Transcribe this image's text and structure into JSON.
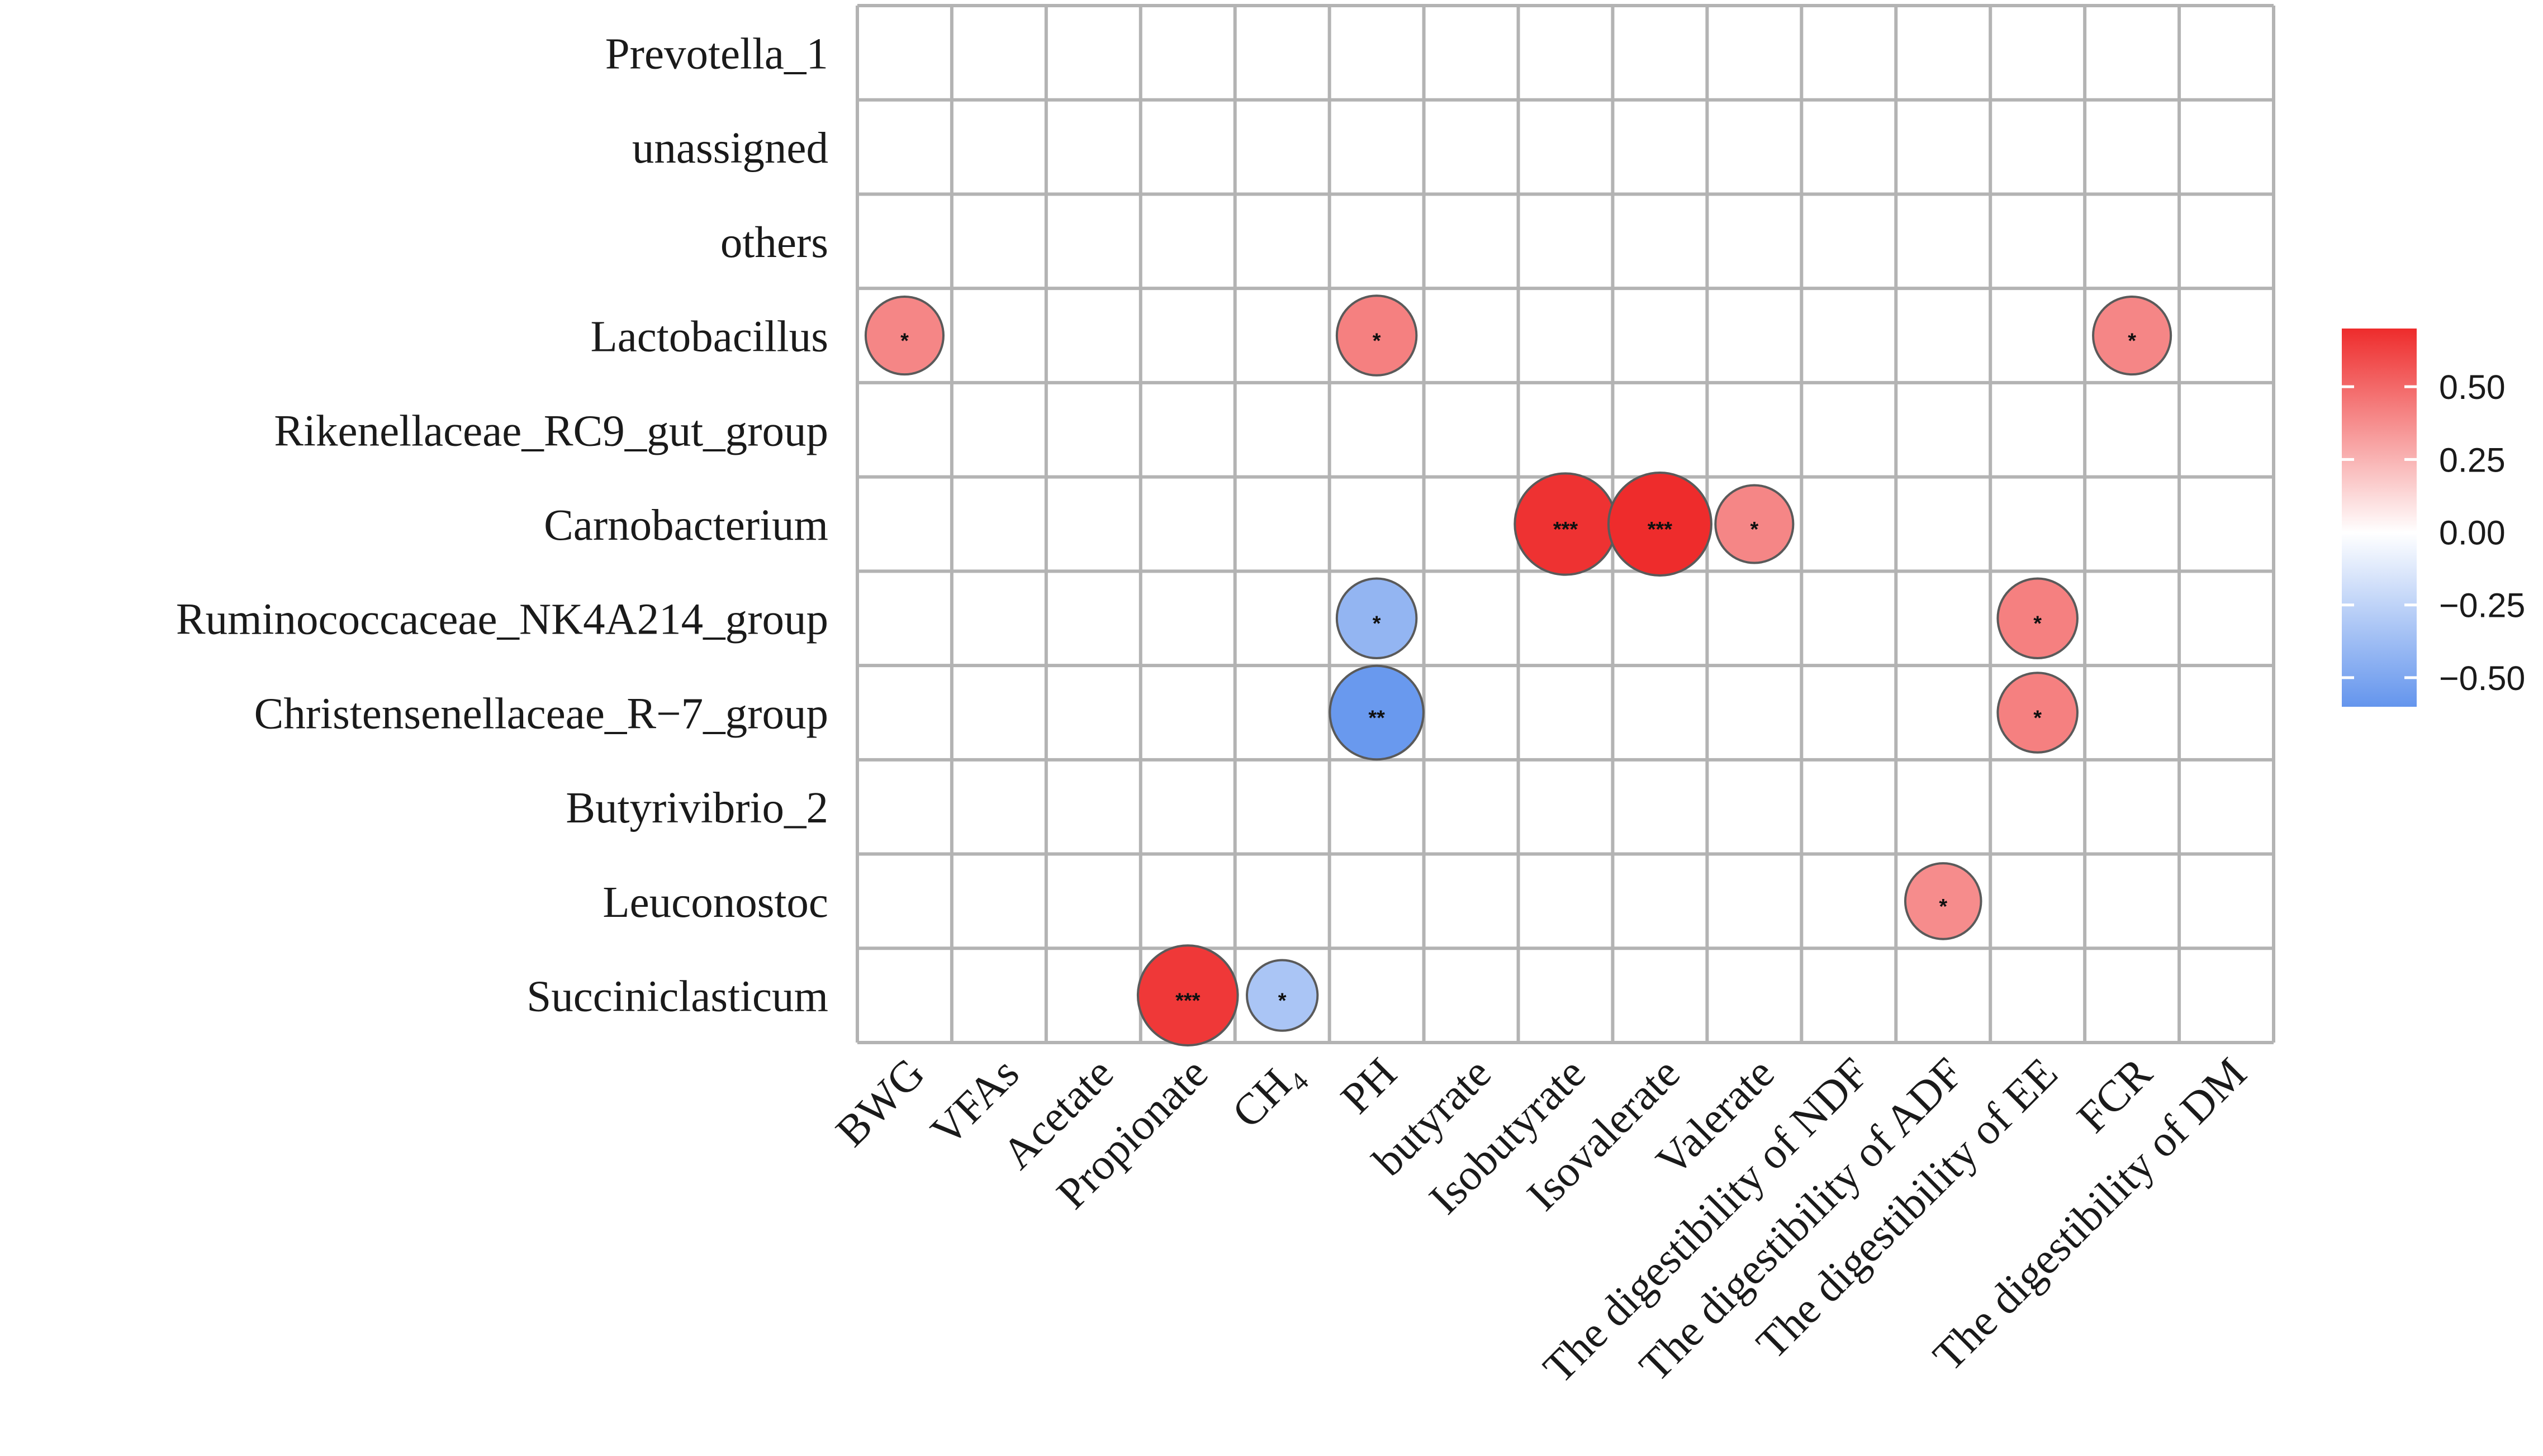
{
  "chart_data": {
    "type": "heatmap",
    "rows": [
      "Prevotella_1",
      "unassigned",
      "others",
      "Lactobacillus",
      "Rikenellaceae_RC9_gut_group",
      "Carnobacterium",
      "Ruminococcaceae_NK4A214_group",
      "Christensenellaceae_R−7_group",
      "Butyrivibrio_2",
      "Leuconostoc",
      "Succiniclasticum"
    ],
    "columns": [
      "BWG",
      "VFAs",
      "Acetate",
      "Propionate",
      "CH₄",
      "PH",
      "butyrate",
      "Isobutyrate",
      "Isovalerate",
      "Valerate",
      "The digestibility of NDF",
      "The digestibility of ADF",
      "The digestibility of EE",
      "FCR",
      "The digestibility of DM"
    ],
    "cells": [
      {
        "row": "Lactobacillus",
        "column": "BWG",
        "value": 0.4,
        "sig": "*"
      },
      {
        "row": "Lactobacillus",
        "column": "PH",
        "value": 0.42,
        "sig": "*"
      },
      {
        "row": "Lactobacillus",
        "column": "FCR",
        "value": 0.4,
        "sig": "*"
      },
      {
        "row": "Carnobacterium",
        "column": "Isobutyrate",
        "value": 0.68,
        "sig": "***"
      },
      {
        "row": "Carnobacterium",
        "column": "Isovalerate",
        "value": 0.7,
        "sig": "***"
      },
      {
        "row": "Carnobacterium",
        "column": "Valerate",
        "value": 0.4,
        "sig": "*"
      },
      {
        "row": "Ruminococcaceae_NK4A214_group",
        "column": "PH",
        "value": -0.42,
        "sig": "*"
      },
      {
        "row": "Ruminococcaceae_NK4A214_group",
        "column": "The digestibility of EE",
        "value": 0.42,
        "sig": "*"
      },
      {
        "row": "Christensenellaceae_R−7_group",
        "column": "PH",
        "value": -0.58,
        "sig": "**"
      },
      {
        "row": "Christensenellaceae_R−7_group",
        "column": "The digestibility of EE",
        "value": 0.42,
        "sig": "*"
      },
      {
        "row": "Leuconostoc",
        "column": "The digestibility of ADF",
        "value": 0.38,
        "sig": "*"
      },
      {
        "row": "Succiniclasticum",
        "column": "Propionate",
        "value": 0.66,
        "sig": "***"
      },
      {
        "row": "Succiniclasticum",
        "column": "CH₄",
        "value": -0.33,
        "sig": "*"
      }
    ],
    "colorbar": {
      "range": [
        -0.6,
        0.7
      ],
      "ticks": [
        0.5,
        0.25,
        0.0,
        -0.25,
        -0.5
      ],
      "tick_labels": [
        "0.50",
        "0.25",
        "0.00",
        "−0.25",
        "−0.50"
      ],
      "colors": {
        "low": "#6495ed",
        "mid": "#ffffff",
        "high": "#ee2c2c"
      }
    },
    "title": "",
    "xlabel": "",
    "ylabel": ""
  }
}
